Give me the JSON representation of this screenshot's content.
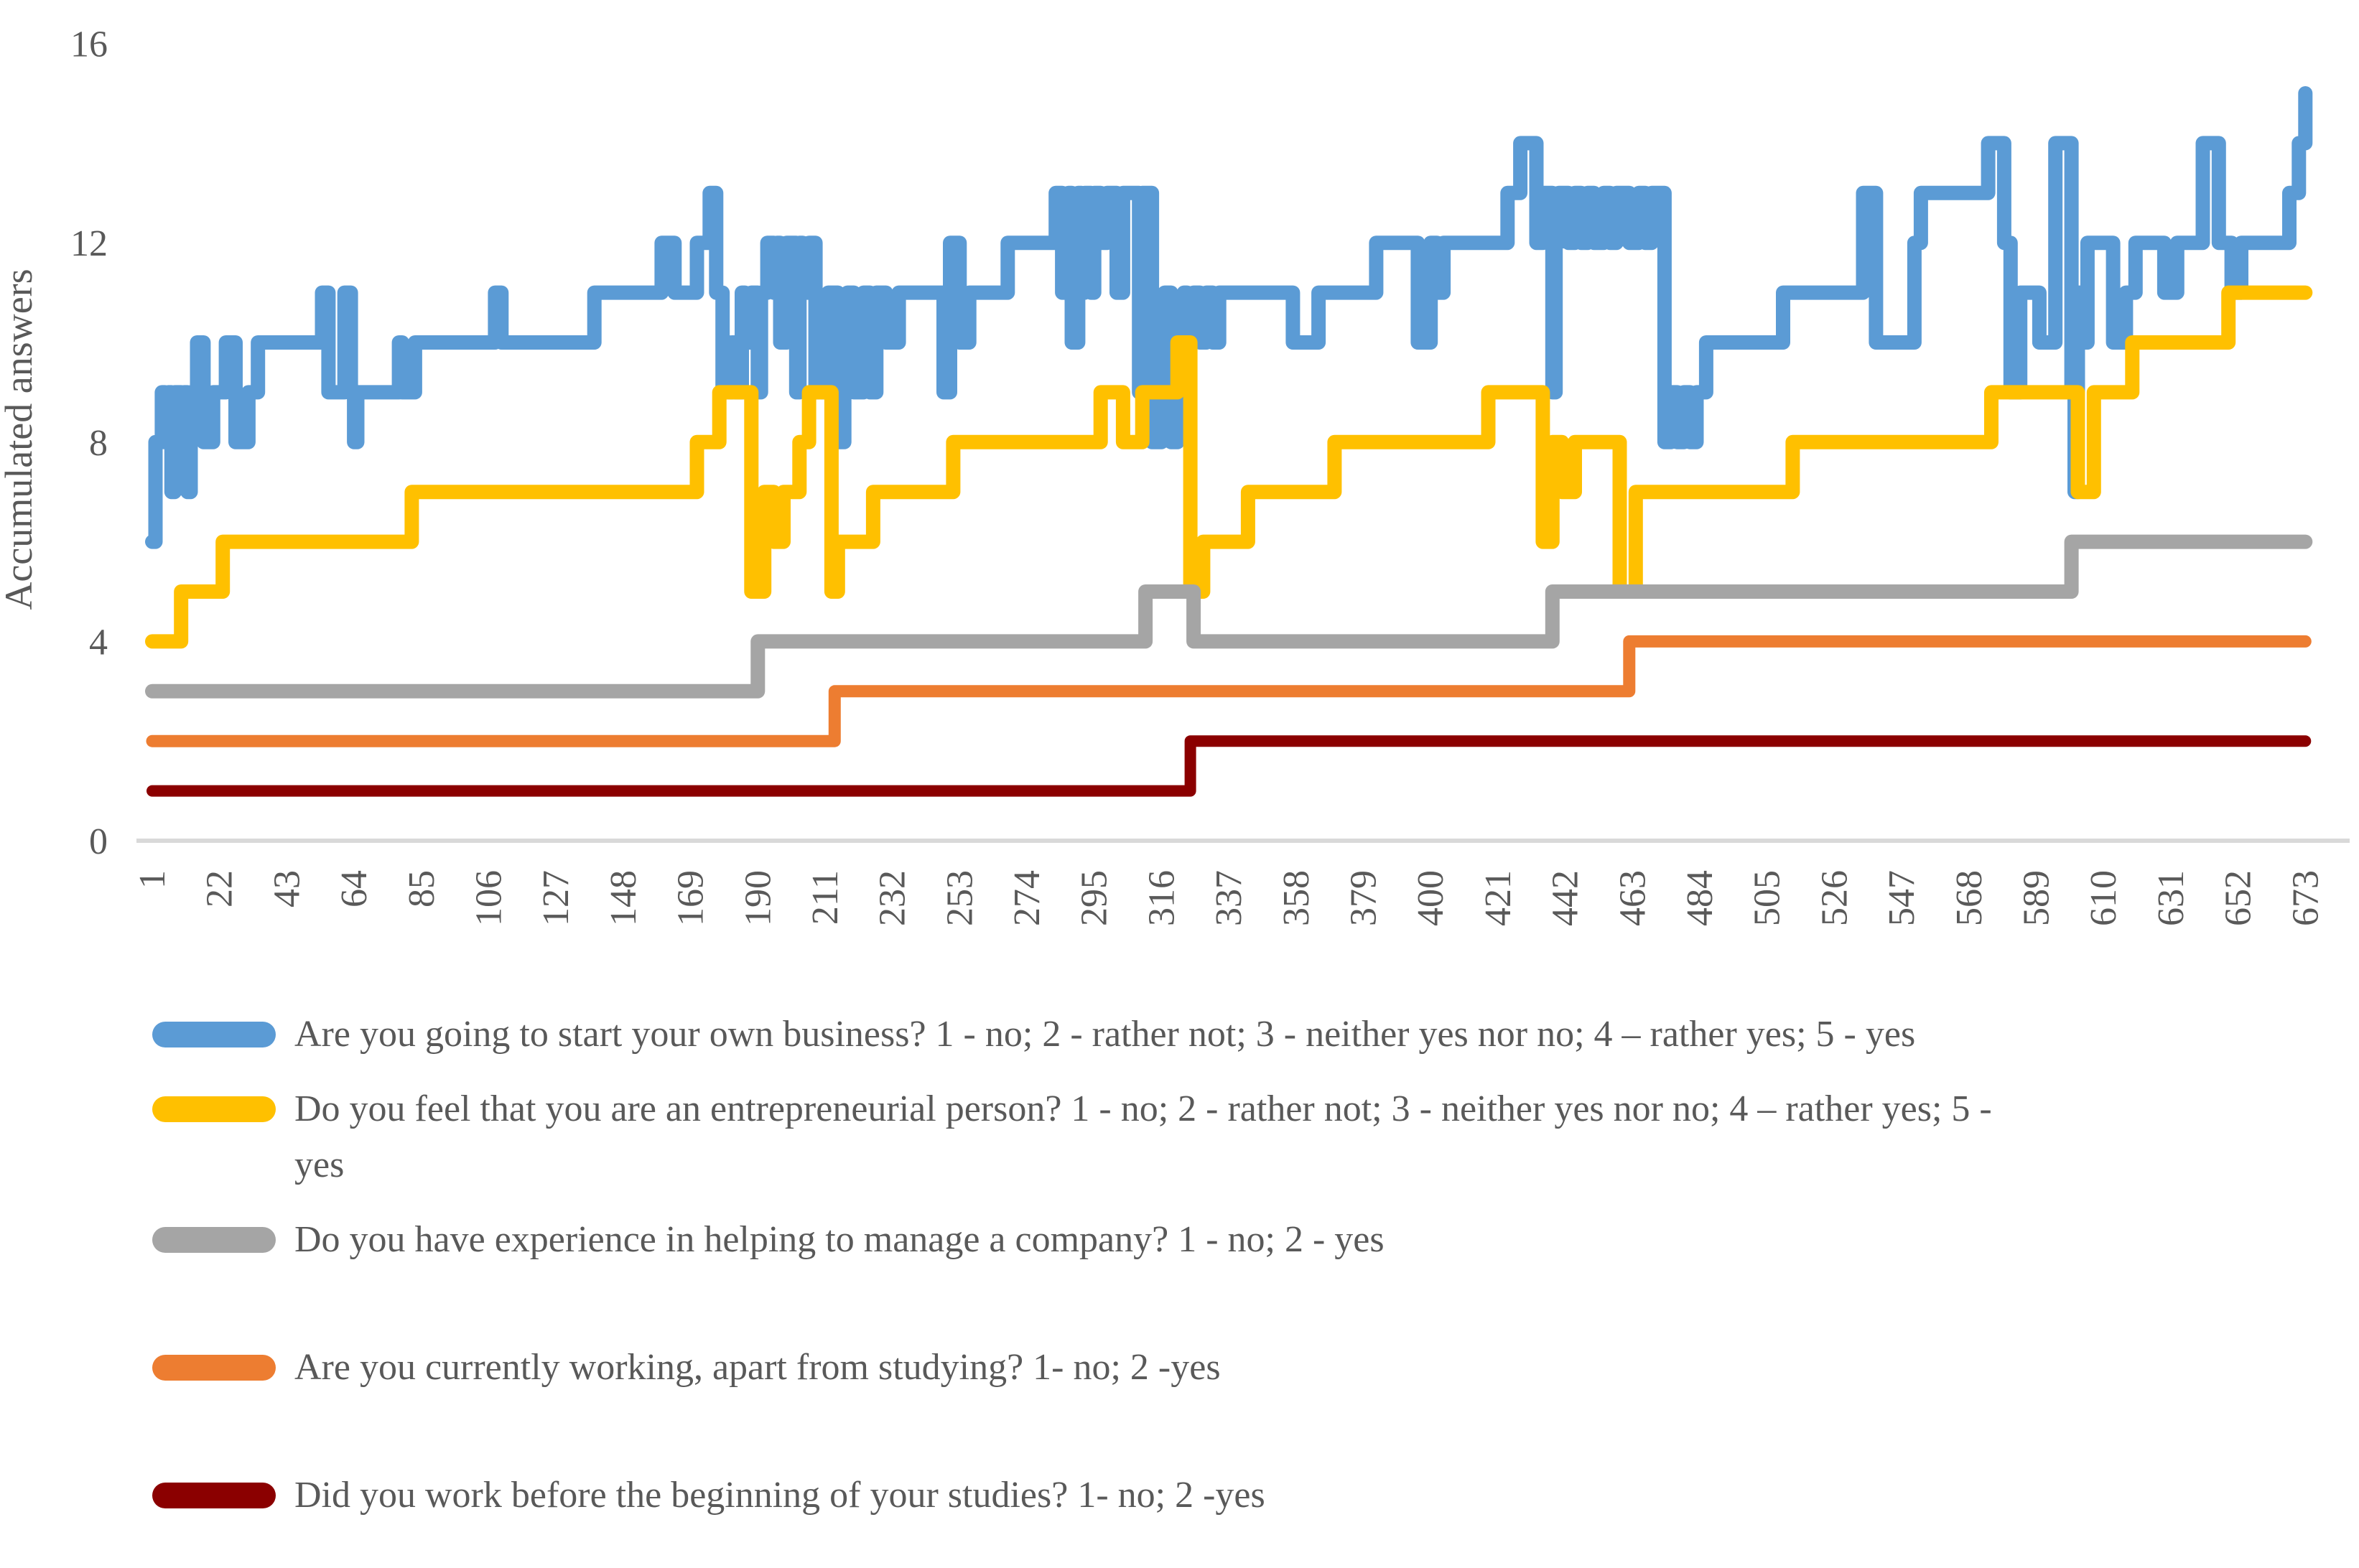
{
  "chart_data": {
    "type": "line",
    "title": "",
    "xlabel": "",
    "ylabel": "Accumulated answers",
    "xlim": [
      1,
      673
    ],
    "ylim": [
      0,
      16
    ],
    "grid": "off",
    "legend_position": "bottom-left",
    "axis_line_color": "#D9D9D9",
    "text_color": "#595959",
    "y_ticks": [
      0,
      4,
      8,
      12,
      16
    ],
    "x_ticks": [
      1,
      22,
      43,
      64,
      85,
      106,
      127,
      148,
      169,
      190,
      211,
      232,
      253,
      274,
      295,
      316,
      337,
      358,
      379,
      400,
      421,
      442,
      463,
      484,
      505,
      526,
      547,
      568,
      589,
      610,
      631,
      652,
      673
    ],
    "series": [
      {
        "name": "Are you going to start your own business? 1 - no; 2 - rather not; 3 - neither yes nor no; 4 – rather yes; 5 - yes",
        "color": "#5B9BD5",
        "points": [
          [
            1,
            6
          ],
          [
            2,
            8
          ],
          [
            4,
            9
          ],
          [
            5,
            8
          ],
          [
            6,
            9
          ],
          [
            7,
            7
          ],
          [
            8,
            9
          ],
          [
            10,
            8
          ],
          [
            11,
            9
          ],
          [
            12,
            7
          ],
          [
            13,
            9
          ],
          [
            15,
            10
          ],
          [
            17,
            8
          ],
          [
            20,
            9
          ],
          [
            24,
            10
          ],
          [
            27,
            8
          ],
          [
            31,
            9
          ],
          [
            34,
            10
          ],
          [
            54,
            11
          ],
          [
            56,
            9
          ],
          [
            61,
            11
          ],
          [
            63,
            9
          ],
          [
            64,
            8
          ],
          [
            65,
            9
          ],
          [
            78,
            10
          ],
          [
            79,
            9
          ],
          [
            83,
            10
          ],
          [
            108,
            11
          ],
          [
            110,
            10
          ],
          [
            139,
            11
          ],
          [
            160,
            12
          ],
          [
            164,
            11
          ],
          [
            171,
            12
          ],
          [
            175,
            13
          ],
          [
            177,
            11
          ],
          [
            179,
            9
          ],
          [
            180,
            10
          ],
          [
            181,
            9
          ],
          [
            182,
            10
          ],
          [
            183,
            9
          ],
          [
            185,
            11
          ],
          [
            186,
            10
          ],
          [
            188,
            11
          ],
          [
            190,
            9
          ],
          [
            191,
            11
          ],
          [
            193,
            12
          ],
          [
            195,
            11
          ],
          [
            196,
            12
          ],
          [
            197,
            10
          ],
          [
            199,
            12
          ],
          [
            202,
            9
          ],
          [
            203,
            12
          ],
          [
            204,
            11
          ],
          [
            206,
            12
          ],
          [
            208,
            9
          ],
          [
            209,
            10
          ],
          [
            210,
            9
          ],
          [
            212,
            11
          ],
          [
            215,
            8
          ],
          [
            217,
            10
          ],
          [
            218,
            11
          ],
          [
            220,
            9
          ],
          [
            223,
            11
          ],
          [
            225,
            9
          ],
          [
            227,
            11
          ],
          [
            230,
            10
          ],
          [
            234,
            11
          ],
          [
            248,
            9
          ],
          [
            250,
            12
          ],
          [
            253,
            10
          ],
          [
            256,
            11
          ],
          [
            268,
            12
          ],
          [
            283,
            13
          ],
          [
            285,
            11
          ],
          [
            287,
            13
          ],
          [
            288,
            10
          ],
          [
            290,
            13
          ],
          [
            291,
            11
          ],
          [
            292,
            13
          ],
          [
            294,
            11
          ],
          [
            295,
            13
          ],
          [
            297,
            12
          ],
          [
            299,
            13
          ],
          [
            302,
            11
          ],
          [
            304,
            13
          ],
          [
            309,
            9
          ],
          [
            310,
            13
          ],
          [
            313,
            8
          ],
          [
            316,
            9
          ],
          [
            317,
            11
          ],
          [
            319,
            8
          ],
          [
            321,
            9
          ],
          [
            323,
            11
          ],
          [
            324,
            10
          ],
          [
            326,
            11
          ],
          [
            328,
            10
          ],
          [
            330,
            11
          ],
          [
            332,
            10
          ],
          [
            334,
            11
          ],
          [
            357,
            10
          ],
          [
            365,
            11
          ],
          [
            383,
            12
          ],
          [
            396,
            10
          ],
          [
            400,
            12
          ],
          [
            402,
            11
          ],
          [
            404,
            12
          ],
          [
            424,
            13
          ],
          [
            428,
            14
          ],
          [
            433,
            12
          ],
          [
            435,
            13
          ],
          [
            438,
            9
          ],
          [
            439,
            12
          ],
          [
            440,
            13
          ],
          [
            443,
            12
          ],
          [
            445,
            13
          ],
          [
            447,
            12
          ],
          [
            449,
            13
          ],
          [
            451,
            12
          ],
          [
            454,
            13
          ],
          [
            456,
            12
          ],
          [
            458,
            13
          ],
          [
            462,
            12
          ],
          [
            465,
            13
          ],
          [
            467,
            12
          ],
          [
            469,
            13
          ],
          [
            473,
            8
          ],
          [
            475,
            9
          ],
          [
            477,
            8
          ],
          [
            479,
            9
          ],
          [
            481,
            8
          ],
          [
            483,
            9
          ],
          [
            486,
            10
          ],
          [
            510,
            11
          ],
          [
            535,
            13
          ],
          [
            539,
            10
          ],
          [
            551,
            12
          ],
          [
            553,
            13
          ],
          [
            574,
            14
          ],
          [
            579,
            12
          ],
          [
            581,
            9
          ],
          [
            584,
            11
          ],
          [
            590,
            10
          ],
          [
            595,
            14
          ],
          [
            600,
            9
          ],
          [
            601,
            7
          ],
          [
            602,
            11
          ],
          [
            604,
            10
          ],
          [
            605,
            12
          ],
          [
            613,
            10
          ],
          [
            617,
            11
          ],
          [
            620,
            12
          ],
          [
            629,
            11
          ],
          [
            633,
            12
          ],
          [
            641,
            14
          ],
          [
            646,
            12
          ],
          [
            650,
            11
          ],
          [
            653,
            12
          ],
          [
            668,
            13
          ],
          [
            671,
            14
          ],
          [
            673,
            15
          ]
        ]
      },
      {
        "name": "Do you feel that you are an entrepreneurial person? 1 - no; 2 - rather not; 3 - neither yes nor no; 4 – rather yes; 5 - yes",
        "color": "#FFC000",
        "points": [
          [
            1,
            4
          ],
          [
            10,
            5
          ],
          [
            23,
            6
          ],
          [
            82,
            7
          ],
          [
            171,
            8
          ],
          [
            178,
            9
          ],
          [
            188,
            5
          ],
          [
            192,
            7
          ],
          [
            195,
            6
          ],
          [
            198,
            7
          ],
          [
            203,
            8
          ],
          [
            206,
            9
          ],
          [
            213,
            5
          ],
          [
            215,
            6
          ],
          [
            226,
            7
          ],
          [
            251,
            8
          ],
          [
            297,
            9
          ],
          [
            304,
            8
          ],
          [
            310,
            9
          ],
          [
            321,
            10
          ],
          [
            325,
            5
          ],
          [
            329,
            6
          ],
          [
            343,
            7
          ],
          [
            370,
            8
          ],
          [
            418,
            9
          ],
          [
            435,
            6
          ],
          [
            438,
            8
          ],
          [
            441,
            7
          ],
          [
            445,
            8
          ],
          [
            459,
            5
          ],
          [
            464,
            7
          ],
          [
            513,
            8
          ],
          [
            575,
            9
          ],
          [
            602,
            7
          ],
          [
            607,
            9
          ],
          [
            619,
            10
          ],
          [
            649,
            11
          ]
        ]
      },
      {
        "name": "Do you have experience in helping to manage a company? 1 - no; 2 - yes",
        "color": "#A5A5A5",
        "points": [
          [
            1,
            3
          ],
          [
            190,
            4
          ],
          [
            311,
            5
          ],
          [
            326,
            4
          ],
          [
            438,
            5
          ],
          [
            600,
            6
          ]
        ]
      },
      {
        "name": "Are you currently working, apart from studying? 1- no; 2 -yes",
        "color": "#ED7D31",
        "points": [
          [
            1,
            2
          ],
          [
            214,
            3
          ],
          [
            462,
            4
          ]
        ]
      },
      {
        "name": "Did you work before the beginning of your studies? 1- no; 2 -yes",
        "color": "#8B0000",
        "points": [
          [
            1,
            1
          ],
          [
            325,
            2
          ]
        ]
      }
    ]
  }
}
